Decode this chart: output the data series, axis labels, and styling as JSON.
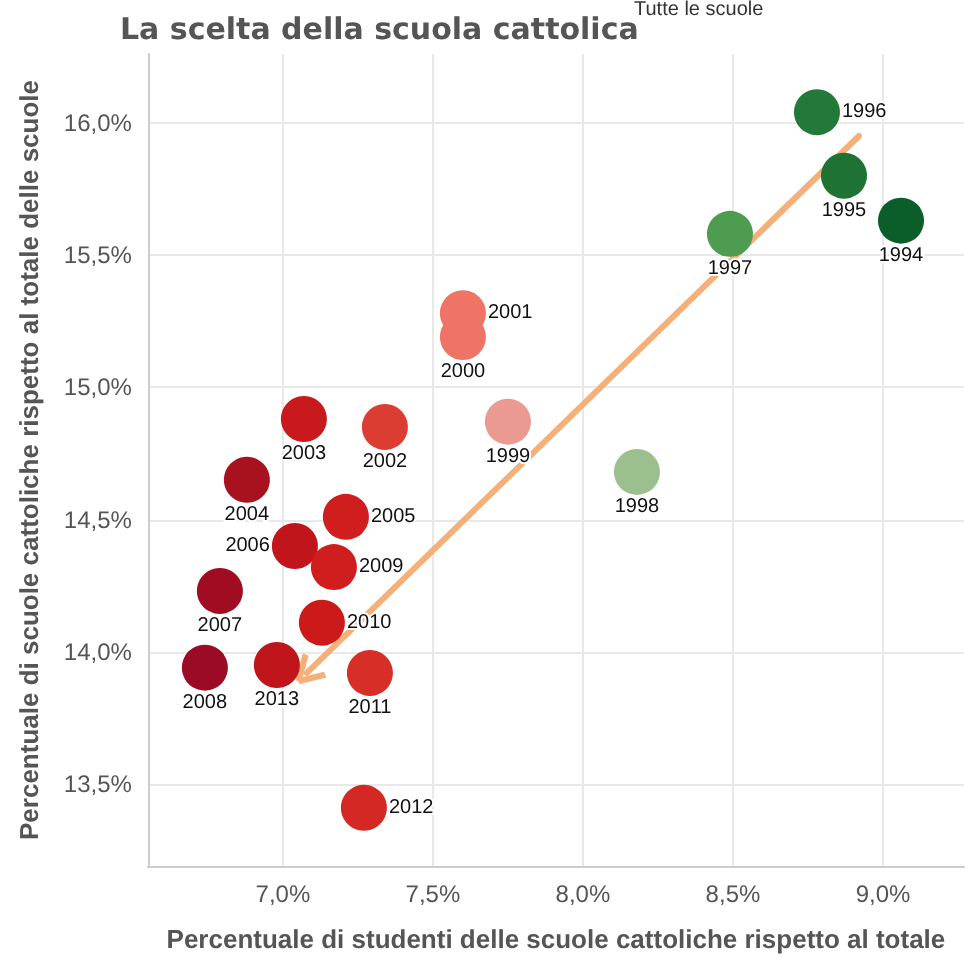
{
  "chart_data": {
    "type": "scatter",
    "title": "La scelta della scuola cattolica",
    "annotations": [
      "Tutte le scuole"
    ],
    "xlabel": "Percentuale di studenti delle scuole cattoliche rispetto al totale",
    "ylabel": "Percentuale di scuole cattoliche rispetto al totale delle scuole",
    "xlim": [
      6.55,
      9.27
    ],
    "xticks": [
      {
        "value": 7.0,
        "label": "7,0%"
      },
      {
        "value": 7.5,
        "label": "7,5%"
      },
      {
        "value": 8.0,
        "label": "8,0%"
      },
      {
        "value": 8.5,
        "label": "8,5%"
      },
      {
        "value": 9.0,
        "label": "9,0%"
      }
    ],
    "ylim": [
      13.19,
      16.26
    ],
    "yticks": [
      {
        "value": 13.5,
        "label": "13,5%"
      },
      {
        "value": 14.0,
        "label": "14,0%"
      },
      {
        "value": 14.5,
        "label": "14,5%"
      },
      {
        "value": 15.0,
        "label": "15,0%"
      },
      {
        "value": 15.5,
        "label": "15,5%"
      },
      {
        "value": 16.0,
        "label": "16,0%"
      }
    ],
    "grid": true,
    "marker": "circle",
    "legend": false,
    "series": [
      {
        "name": "1994",
        "color": "#0b5e2a",
        "x": [
          9.06
        ],
        "values": [
          15.63
        ]
      },
      {
        "name": "1995",
        "color": "#1e7334",
        "x": [
          8.87
        ],
        "values": [
          15.8
        ]
      },
      {
        "name": "1996",
        "color": "#237a38",
        "x": [
          8.78
        ],
        "values": [
          16.04
        ]
      },
      {
        "name": "1997",
        "color": "#4e9c4f",
        "x": [
          8.49
        ],
        "values": [
          15.58
        ]
      },
      {
        "name": "1998",
        "color": "#9cc08d",
        "x": [
          8.18
        ],
        "values": [
          14.68
        ]
      },
      {
        "name": "1999",
        "color": "#ea9a91",
        "x": [
          7.75
        ],
        "values": [
          14.87
        ]
      },
      {
        "name": "2000",
        "color": "#f07466",
        "x": [
          7.6
        ],
        "values": [
          15.19
        ]
      },
      {
        "name": "2001",
        "color": "#f07466",
        "x": [
          7.6
        ],
        "values": [
          15.28
        ]
      },
      {
        "name": "2002",
        "color": "#dc3d33",
        "x": [
          7.34
        ],
        "values": [
          14.85
        ]
      },
      {
        "name": "2003",
        "color": "#c81a1c",
        "x": [
          7.07
        ],
        "values": [
          14.88
        ]
      },
      {
        "name": "2004",
        "color": "#a8121f",
        "x": [
          6.88
        ],
        "values": [
          14.65
        ]
      },
      {
        "name": "2005",
        "color": "#d01d1d",
        "x": [
          7.21
        ],
        "values": [
          14.51
        ]
      },
      {
        "name": "2006",
        "color": "#c0161b",
        "x": [
          7.04
        ],
        "values": [
          14.4
        ]
      },
      {
        "name": "2007",
        "color": "#a00d22",
        "x": [
          6.79
        ],
        "values": [
          14.23
        ]
      },
      {
        "name": "2008",
        "color": "#9b0b25",
        "x": [
          6.74
        ],
        "values": [
          13.94
        ]
      },
      {
        "name": "2009",
        "color": "#d01d1d",
        "x": [
          7.17
        ],
        "values": [
          14.32
        ]
      },
      {
        "name": "2010",
        "color": "#cc1a1a",
        "x": [
          7.13
        ],
        "values": [
          14.11
        ]
      },
      {
        "name": "2011",
        "color": "#d82e28",
        "x": [
          7.29
        ],
        "values": [
          13.92
        ]
      },
      {
        "name": "2012",
        "color": "#d42824",
        "x": [
          7.27
        ],
        "values": [
          13.41
        ]
      },
      {
        "name": "2013",
        "color": "#c0161b",
        "x": [
          6.98
        ],
        "values": [
          13.95
        ]
      },
      {
        "type": "line",
        "marker": "none",
        "color": "#f5b07a",
        "x": [
          8.92,
          7.08
        ],
        "values": [
          15.95,
          13.92
        ]
      }
    ]
  }
}
